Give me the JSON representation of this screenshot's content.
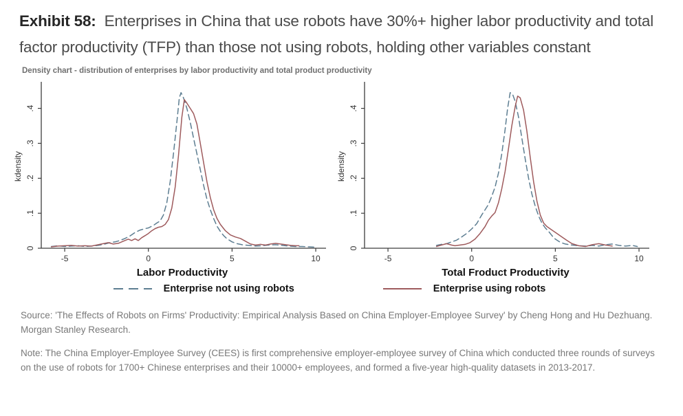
{
  "header": {
    "exhibit_label": "Exhibit 58:",
    "title_text": "Enterprises in China that use robots have 30%+ higher labor productivity and total factor productivity (TFP) than those not using robots, holding other variables constant",
    "subtitle": "Density chart - distribution of enterprises by labor productivity and total product productivity"
  },
  "colors": {
    "not_using_robots": "#5c7d91",
    "using_robots": "#9e5a5c",
    "axis": "#3c3c3c",
    "tick_text": "#333333"
  },
  "legend": {
    "items": [
      {
        "label": "Enterprise not using robots",
        "style": "dashed",
        "color": "#5c7d91"
      },
      {
        "label": "Enterprise using robots",
        "style": "solid",
        "color": "#9e5a5c"
      }
    ]
  },
  "chart_data": [
    {
      "type": "line",
      "xlabel": "Labor Productivity",
      "ylabel": "kdensity",
      "xlim": [
        -6.4,
        10.45
      ],
      "ylim": [
        0,
        0.468
      ],
      "grid": false,
      "x_ticks": [
        {
          "v": -5,
          "label": "-5"
        },
        {
          "v": 0,
          "label": "0"
        },
        {
          "v": 5,
          "label": "5"
        },
        {
          "v": 10,
          "label": "10"
        }
      ],
      "y_ticks": [
        {
          "v": 0,
          "label": "0"
        },
        {
          "v": 0.1,
          "label": ".1"
        },
        {
          "v": 0.2,
          "label": ".2"
        },
        {
          "v": 0.3,
          "label": ".3"
        },
        {
          "v": 0.4,
          "label": ".4"
        }
      ],
      "series": [
        {
          "name": "Enterprise not using robots",
          "style": "dashed",
          "color": "#5c7d91",
          "points": [
            [
              -5.8,
              0.005
            ],
            [
              -5.4,
              0.007
            ],
            [
              -5,
              0.005
            ],
            [
              -4.6,
              0.006
            ],
            [
              -4.2,
              0.007
            ],
            [
              -3.8,
              0.005
            ],
            [
              -3.4,
              0.006
            ],
            [
              -3,
              0.008
            ],
            [
              -2.6,
              0.012
            ],
            [
              -2.3,
              0.016
            ],
            [
              -2,
              0.018
            ],
            [
              -1.7,
              0.022
            ],
            [
              -1.4,
              0.028
            ],
            [
              -1.1,
              0.035
            ],
            [
              -0.8,
              0.045
            ],
            [
              -0.5,
              0.052
            ],
            [
              -0.2,
              0.056
            ],
            [
              0,
              0.058
            ],
            [
              0.3,
              0.065
            ],
            [
              0.5,
              0.072
            ],
            [
              0.7,
              0.078
            ],
            [
              0.9,
              0.095
            ],
            [
              1.1,
              0.13
            ],
            [
              1.3,
              0.19
            ],
            [
              1.5,
              0.27
            ],
            [
              1.7,
              0.36
            ],
            [
              1.85,
              0.43
            ],
            [
              1.95,
              0.445
            ],
            [
              2.1,
              0.43
            ],
            [
              2.3,
              0.4
            ],
            [
              2.5,
              0.36
            ],
            [
              2.7,
              0.315
            ],
            [
              2.9,
              0.27
            ],
            [
              3.1,
              0.225
            ],
            [
              3.3,
              0.18
            ],
            [
              3.5,
              0.14
            ],
            [
              3.7,
              0.11
            ],
            [
              3.9,
              0.085
            ],
            [
              4.1,
              0.063
            ],
            [
              4.3,
              0.048
            ],
            [
              4.5,
              0.036
            ],
            [
              4.7,
              0.027
            ],
            [
              5,
              0.018
            ],
            [
              5.3,
              0.013
            ],
            [
              5.6,
              0.01
            ],
            [
              6,
              0.008
            ],
            [
              6.4,
              0.006
            ],
            [
              6.8,
              0.007
            ],
            [
              7.2,
              0.009
            ],
            [
              7.6,
              0.01
            ],
            [
              8,
              0.008
            ],
            [
              8.4,
              0.006
            ],
            [
              8.8,
              0.005
            ],
            [
              9.2,
              0.005
            ],
            [
              9.6,
              0.004
            ],
            [
              10,
              0.003
            ]
          ]
        },
        {
          "name": "Enterprise using robots",
          "style": "solid",
          "color": "#9e5a5c",
          "points": [
            [
              -5.8,
              0.004
            ],
            [
              -5.4,
              0.006
            ],
            [
              -5,
              0.007
            ],
            [
              -4.6,
              0.008
            ],
            [
              -4.2,
              0.006
            ],
            [
              -3.8,
              0.007
            ],
            [
              -3.4,
              0.006
            ],
            [
              -3,
              0.01
            ],
            [
              -2.7,
              0.013
            ],
            [
              -2.4,
              0.016
            ],
            [
              -2.1,
              0.012
            ],
            [
              -1.8,
              0.014
            ],
            [
              -1.5,
              0.02
            ],
            [
              -1.2,
              0.026
            ],
            [
              -1,
              0.022
            ],
            [
              -0.8,
              0.027
            ],
            [
              -0.6,
              0.022
            ],
            [
              -0.4,
              0.03
            ],
            [
              -0.2,
              0.036
            ],
            [
              0,
              0.042
            ],
            [
              0.2,
              0.05
            ],
            [
              0.4,
              0.056
            ],
            [
              0.6,
              0.06
            ],
            [
              0.8,
              0.062
            ],
            [
              1,
              0.068
            ],
            [
              1.2,
              0.082
            ],
            [
              1.4,
              0.115
            ],
            [
              1.6,
              0.175
            ],
            [
              1.8,
              0.265
            ],
            [
              2,
              0.375
            ],
            [
              2.15,
              0.425
            ],
            [
              2.3,
              0.415
            ],
            [
              2.5,
              0.4
            ],
            [
              2.7,
              0.385
            ],
            [
              2.9,
              0.355
            ],
            [
              3.1,
              0.3
            ],
            [
              3.3,
              0.245
            ],
            [
              3.5,
              0.19
            ],
            [
              3.7,
              0.145
            ],
            [
              3.9,
              0.11
            ],
            [
              4.1,
              0.085
            ],
            [
              4.3,
              0.068
            ],
            [
              4.6,
              0.05
            ],
            [
              4.9,
              0.038
            ],
            [
              5.2,
              0.032
            ],
            [
              5.5,
              0.028
            ],
            [
              5.8,
              0.02
            ],
            [
              6.1,
              0.012
            ],
            [
              6.4,
              0.009
            ],
            [
              6.7,
              0.011
            ],
            [
              7,
              0.009
            ],
            [
              7.3,
              0.012
            ],
            [
              7.6,
              0.014
            ],
            [
              7.9,
              0.012
            ],
            [
              8.2,
              0.01
            ],
            [
              8.5,
              0.008
            ],
            [
              8.8,
              0.007
            ],
            [
              9,
              0.007
            ]
          ]
        }
      ]
    },
    {
      "type": "line",
      "xlabel": "Total Froduct Productivity",
      "ylabel": "kdensity",
      "xlim": [
        -6.4,
        10.45
      ],
      "ylim": [
        0,
        0.468
      ],
      "grid": false,
      "x_ticks": [
        {
          "v": -5,
          "label": "-5"
        },
        {
          "v": 0,
          "label": "0"
        },
        {
          "v": 5,
          "label": "5"
        },
        {
          "v": 10,
          "label": "10"
        }
      ],
      "y_ticks": [
        {
          "v": 0,
          "label": "0"
        },
        {
          "v": 0.1,
          "label": ".1"
        },
        {
          "v": 0.2,
          "label": ".2"
        },
        {
          "v": 0.3,
          "label": ".3"
        },
        {
          "v": 0.4,
          "label": ".4"
        }
      ],
      "series": [
        {
          "name": "Enterprise not using robots",
          "style": "dashed",
          "color": "#5c7d91",
          "points": [
            [
              -2.1,
              0.008
            ],
            [
              -1.8,
              0.011
            ],
            [
              -1.5,
              0.013
            ],
            [
              -1.2,
              0.018
            ],
            [
              -0.9,
              0.023
            ],
            [
              -0.6,
              0.032
            ],
            [
              -0.3,
              0.042
            ],
            [
              0,
              0.055
            ],
            [
              0.3,
              0.07
            ],
            [
              0.6,
              0.095
            ],
            [
              0.8,
              0.11
            ],
            [
              1,
              0.125
            ],
            [
              1.2,
              0.148
            ],
            [
              1.4,
              0.175
            ],
            [
              1.6,
              0.215
            ],
            [
              1.8,
              0.27
            ],
            [
              2,
              0.34
            ],
            [
              2.15,
              0.4
            ],
            [
              2.3,
              0.445
            ],
            [
              2.45,
              0.44
            ],
            [
              2.6,
              0.42
            ],
            [
              2.8,
              0.375
            ],
            [
              3,
              0.315
            ],
            [
              3.2,
              0.255
            ],
            [
              3.4,
              0.2
            ],
            [
              3.6,
              0.155
            ],
            [
              3.8,
              0.12
            ],
            [
              4,
              0.092
            ],
            [
              4.2,
              0.072
            ],
            [
              4.4,
              0.058
            ],
            [
              4.6,
              0.048
            ],
            [
              4.8,
              0.036
            ],
            [
              5,
              0.026
            ],
            [
              5.3,
              0.017
            ],
            [
              5.6,
              0.012
            ],
            [
              6,
              0.009
            ],
            [
              6.4,
              0.007
            ],
            [
              6.8,
              0.006
            ],
            [
              7.2,
              0.008
            ],
            [
              7.6,
              0.006
            ],
            [
              8,
              0.01
            ],
            [
              8.4,
              0.012
            ],
            [
              8.8,
              0.008
            ],
            [
              9.2,
              0.006
            ],
            [
              9.6,
              0.008
            ],
            [
              9.9,
              0.005
            ]
          ]
        },
        {
          "name": "Enterprise using robots",
          "style": "solid",
          "color": "#9e5a5c",
          "points": [
            [
              -2.1,
              0.005
            ],
            [
              -1.8,
              0.009
            ],
            [
              -1.5,
              0.013
            ],
            [
              -1.2,
              0.009
            ],
            [
              -1,
              0.007
            ],
            [
              -0.7,
              0.009
            ],
            [
              -0.4,
              0.011
            ],
            [
              -0.1,
              0.016
            ],
            [
              0.2,
              0.026
            ],
            [
              0.5,
              0.042
            ],
            [
              0.8,
              0.062
            ],
            [
              1,
              0.08
            ],
            [
              1.2,
              0.092
            ],
            [
              1.4,
              0.102
            ],
            [
              1.6,
              0.13
            ],
            [
              1.8,
              0.17
            ],
            [
              2,
              0.22
            ],
            [
              2.2,
              0.285
            ],
            [
              2.4,
              0.35
            ],
            [
              2.6,
              0.405
            ],
            [
              2.75,
              0.435
            ],
            [
              2.9,
              0.43
            ],
            [
              3.1,
              0.395
            ],
            [
              3.3,
              0.335
            ],
            [
              3.5,
              0.26
            ],
            [
              3.7,
              0.19
            ],
            [
              3.9,
              0.135
            ],
            [
              4.1,
              0.095
            ],
            [
              4.3,
              0.072
            ],
            [
              4.5,
              0.062
            ],
            [
              4.8,
              0.052
            ],
            [
              5.1,
              0.042
            ],
            [
              5.4,
              0.032
            ],
            [
              5.7,
              0.022
            ],
            [
              6,
              0.013
            ],
            [
              6.4,
              0.007
            ],
            [
              6.8,
              0.005
            ],
            [
              7.2,
              0.01
            ],
            [
              7.6,
              0.013
            ],
            [
              8,
              0.009
            ],
            [
              8.4,
              0.006
            ]
          ]
        }
      ]
    }
  ],
  "footer": {
    "source": "Source: 'The Effects of Robots on Firms' Productivity: Empirical Analysis Based on China Employer-Employee Survey' by Cheng Hong and Hu Dezhuang. Morgan Stanley Research.",
    "note": "Note: The China Employer-Employee Survey (CEES) is first comprehensive employer-employee survey of China which conducted three rounds of surveys on the use of robots for 1700+ Chinese enterprises and their 10000+ employees, and formed a five-year high-quality datasets in 2013-2017."
  }
}
